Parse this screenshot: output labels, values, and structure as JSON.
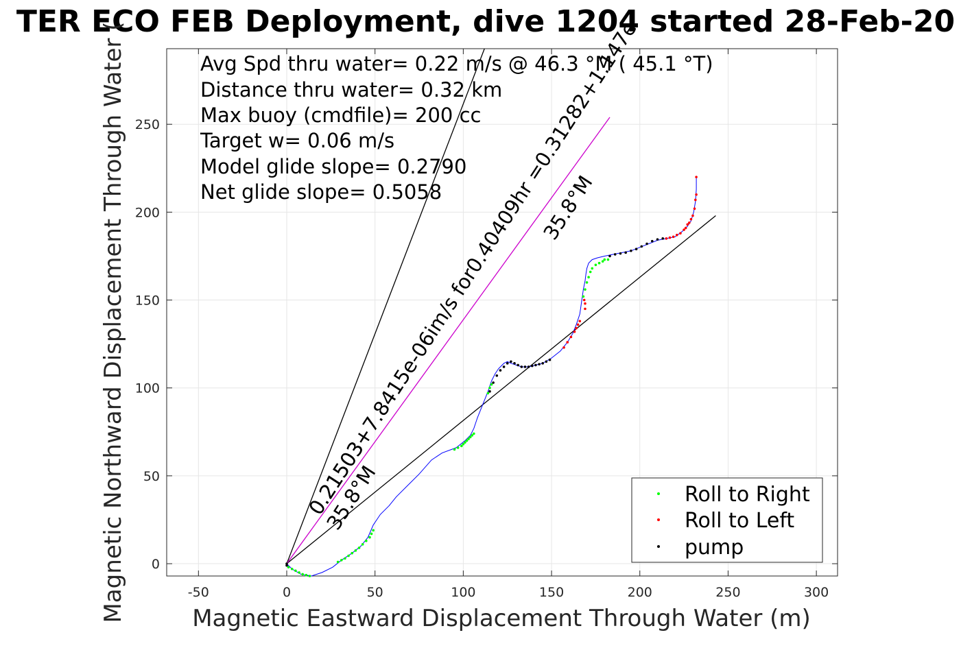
{
  "title": "TER ECO FEB Deployment, dive 1204 started 28-Feb-20",
  "xlabel": "Magnetic Eastward Displacement Through Water (m)",
  "ylabel": "Magnetic Northward Displacement Through Water (",
  "info_lines": [
    "Avg Spd thru water=  0.22 m/s @  46.3 °M ( 45.1 °T)",
    "Distance thru water=  0.32 km",
    "Max buoy (cmdfile)= 200 cc",
    "Target w= 0.06 m/s",
    "Model glide slope= 0.2790",
    "Net glide slope= 0.5058"
  ],
  "current_label_1": "0.21503+7.8415e-06im/s for0.40409hr =0.31282+1.147e",
  "current_label_2": "35.8°M",
  "origin_label_1": "0.21503+",
  "origin_label_2": "35.8°M",
  "legend": [
    {
      "label": "Roll to Right",
      "color": "#00ff00"
    },
    {
      "label": "Roll to Left",
      "color": "#ff0000"
    },
    {
      "label": "pump",
      "color": "#000000"
    }
  ],
  "colors": {
    "track": "#0000ff",
    "current_line": "#cc00cc",
    "heading_lines": "#000000",
    "grid": "#e6e6e6"
  },
  "chart_data": {
    "type": "line",
    "xlim": [
      -68,
      312
    ],
    "ylim": [
      -7,
      293
    ],
    "xticks": [
      -50,
      0,
      50,
      100,
      150,
      200,
      250,
      300
    ],
    "yticks": [
      0,
      50,
      100,
      150,
      200,
      250
    ],
    "grid": true,
    "legend_position": "bottom-right",
    "track": {
      "x": [
        0,
        3,
        8,
        14,
        20,
        26,
        31,
        37,
        42,
        46,
        49,
        53,
        58,
        62,
        68,
        75,
        82,
        88,
        96,
        101,
        104,
        106,
        107,
        108,
        110,
        112,
        114,
        116,
        118,
        120,
        123,
        125,
        127,
        130,
        133,
        137,
        141,
        145,
        150,
        155,
        159,
        162,
        164,
        166,
        167,
        168,
        169,
        169.5,
        170,
        171,
        173,
        176,
        180,
        185,
        190,
        195,
        200,
        205,
        210,
        215,
        220,
        224,
        227,
        229,
        230.5,
        231.5,
        232,
        232
      ],
      "y": [
        0,
        -3,
        -6,
        -7,
        -5,
        -2,
        2,
        6,
        10,
        15,
        22,
        28,
        33,
        38,
        44,
        51,
        59,
        63,
        66,
        70,
        73,
        77,
        80,
        83,
        88,
        93,
        98,
        104,
        108,
        111,
        114,
        115,
        114,
        113,
        112,
        112,
        113,
        114,
        117,
        121,
        126,
        131,
        136,
        142,
        149,
        156,
        161,
        165,
        168,
        171,
        173,
        174,
        175,
        176,
        177,
        178,
        180,
        182,
        184,
        185,
        186,
        189,
        192,
        195,
        200,
        206,
        213,
        220
      ]
    },
    "roll_right_points": [
      [
        1,
        -2
      ],
      [
        3,
        -3
      ],
      [
        5,
        -4
      ],
      [
        7,
        -5
      ],
      [
        9,
        -6
      ],
      [
        11,
        -6.5
      ],
      [
        13,
        -7
      ],
      [
        29,
        1
      ],
      [
        31,
        2
      ],
      [
        33,
        3
      ],
      [
        35,
        4.5
      ],
      [
        37,
        6
      ],
      [
        39,
        7.5
      ],
      [
        41,
        9
      ],
      [
        43,
        11
      ],
      [
        45,
        13
      ],
      [
        47,
        15
      ],
      [
        48,
        17
      ],
      [
        49,
        19
      ],
      [
        95,
        65
      ],
      [
        97,
        66
      ],
      [
        99,
        67
      ],
      [
        100,
        68
      ],
      [
        101,
        69
      ],
      [
        102,
        70
      ],
      [
        103,
        71
      ],
      [
        104,
        72
      ],
      [
        105,
        73
      ],
      [
        106,
        74
      ],
      [
        114,
        97
      ],
      [
        115,
        100
      ],
      [
        116,
        102
      ],
      [
        168,
        152
      ],
      [
        169,
        156
      ],
      [
        170,
        160
      ],
      [
        171,
        163
      ],
      [
        172,
        166
      ],
      [
        173,
        168
      ],
      [
        175,
        170
      ],
      [
        177,
        171
      ],
      [
        179,
        172
      ],
      [
        180,
        173
      ],
      [
        182,
        173
      ]
    ],
    "roll_left_points": [
      [
        157,
        123
      ],
      [
        159,
        126
      ],
      [
        161,
        129
      ],
      [
        163,
        132
      ],
      [
        164,
        134
      ],
      [
        165,
        136
      ],
      [
        166,
        138
      ],
      [
        169,
        145
      ],
      [
        169,
        148
      ],
      [
        168.5,
        150
      ],
      [
        215,
        185
      ],
      [
        217,
        185.5
      ],
      [
        219,
        186
      ],
      [
        221,
        187
      ],
      [
        223,
        188
      ],
      [
        225,
        190
      ],
      [
        226,
        191
      ],
      [
        227,
        193
      ],
      [
        228,
        194
      ],
      [
        229,
        196
      ],
      [
        230,
        198
      ],
      [
        231,
        202
      ],
      [
        231.5,
        207
      ],
      [
        232,
        210
      ],
      [
        232,
        220
      ]
    ],
    "pump_points": [
      [
        0,
        0
      ],
      [
        0,
        -1
      ],
      [
        115,
        98
      ],
      [
        117,
        103
      ],
      [
        119,
        107
      ],
      [
        121,
        110
      ],
      [
        123,
        112
      ],
      [
        125,
        114
      ],
      [
        127,
        115
      ],
      [
        129,
        114
      ],
      [
        131,
        113
      ],
      [
        133,
        112
      ],
      [
        135,
        112
      ],
      [
        137,
        112
      ],
      [
        139,
        112.5
      ],
      [
        141,
        113
      ],
      [
        143,
        113.5
      ],
      [
        145,
        114
      ],
      [
        147,
        115
      ],
      [
        149,
        116
      ],
      [
        183,
        175
      ],
      [
        186,
        176
      ],
      [
        189,
        176.5
      ],
      [
        192,
        177
      ],
      [
        195,
        178
      ],
      [
        198,
        179
      ],
      [
        201,
        180.5
      ],
      [
        204,
        182
      ],
      [
        207,
        183.5
      ],
      [
        210,
        184.5
      ],
      [
        213,
        185
      ]
    ],
    "current_line": {
      "x": [
        0,
        183
      ],
      "y": [
        0,
        254
      ]
    },
    "heading_line_1": {
      "x": [
        0,
        112
      ],
      "y": [
        0,
        293
      ]
    },
    "heading_line_2": {
      "x": [
        0,
        243
      ],
      "y": [
        0,
        198
      ]
    }
  }
}
